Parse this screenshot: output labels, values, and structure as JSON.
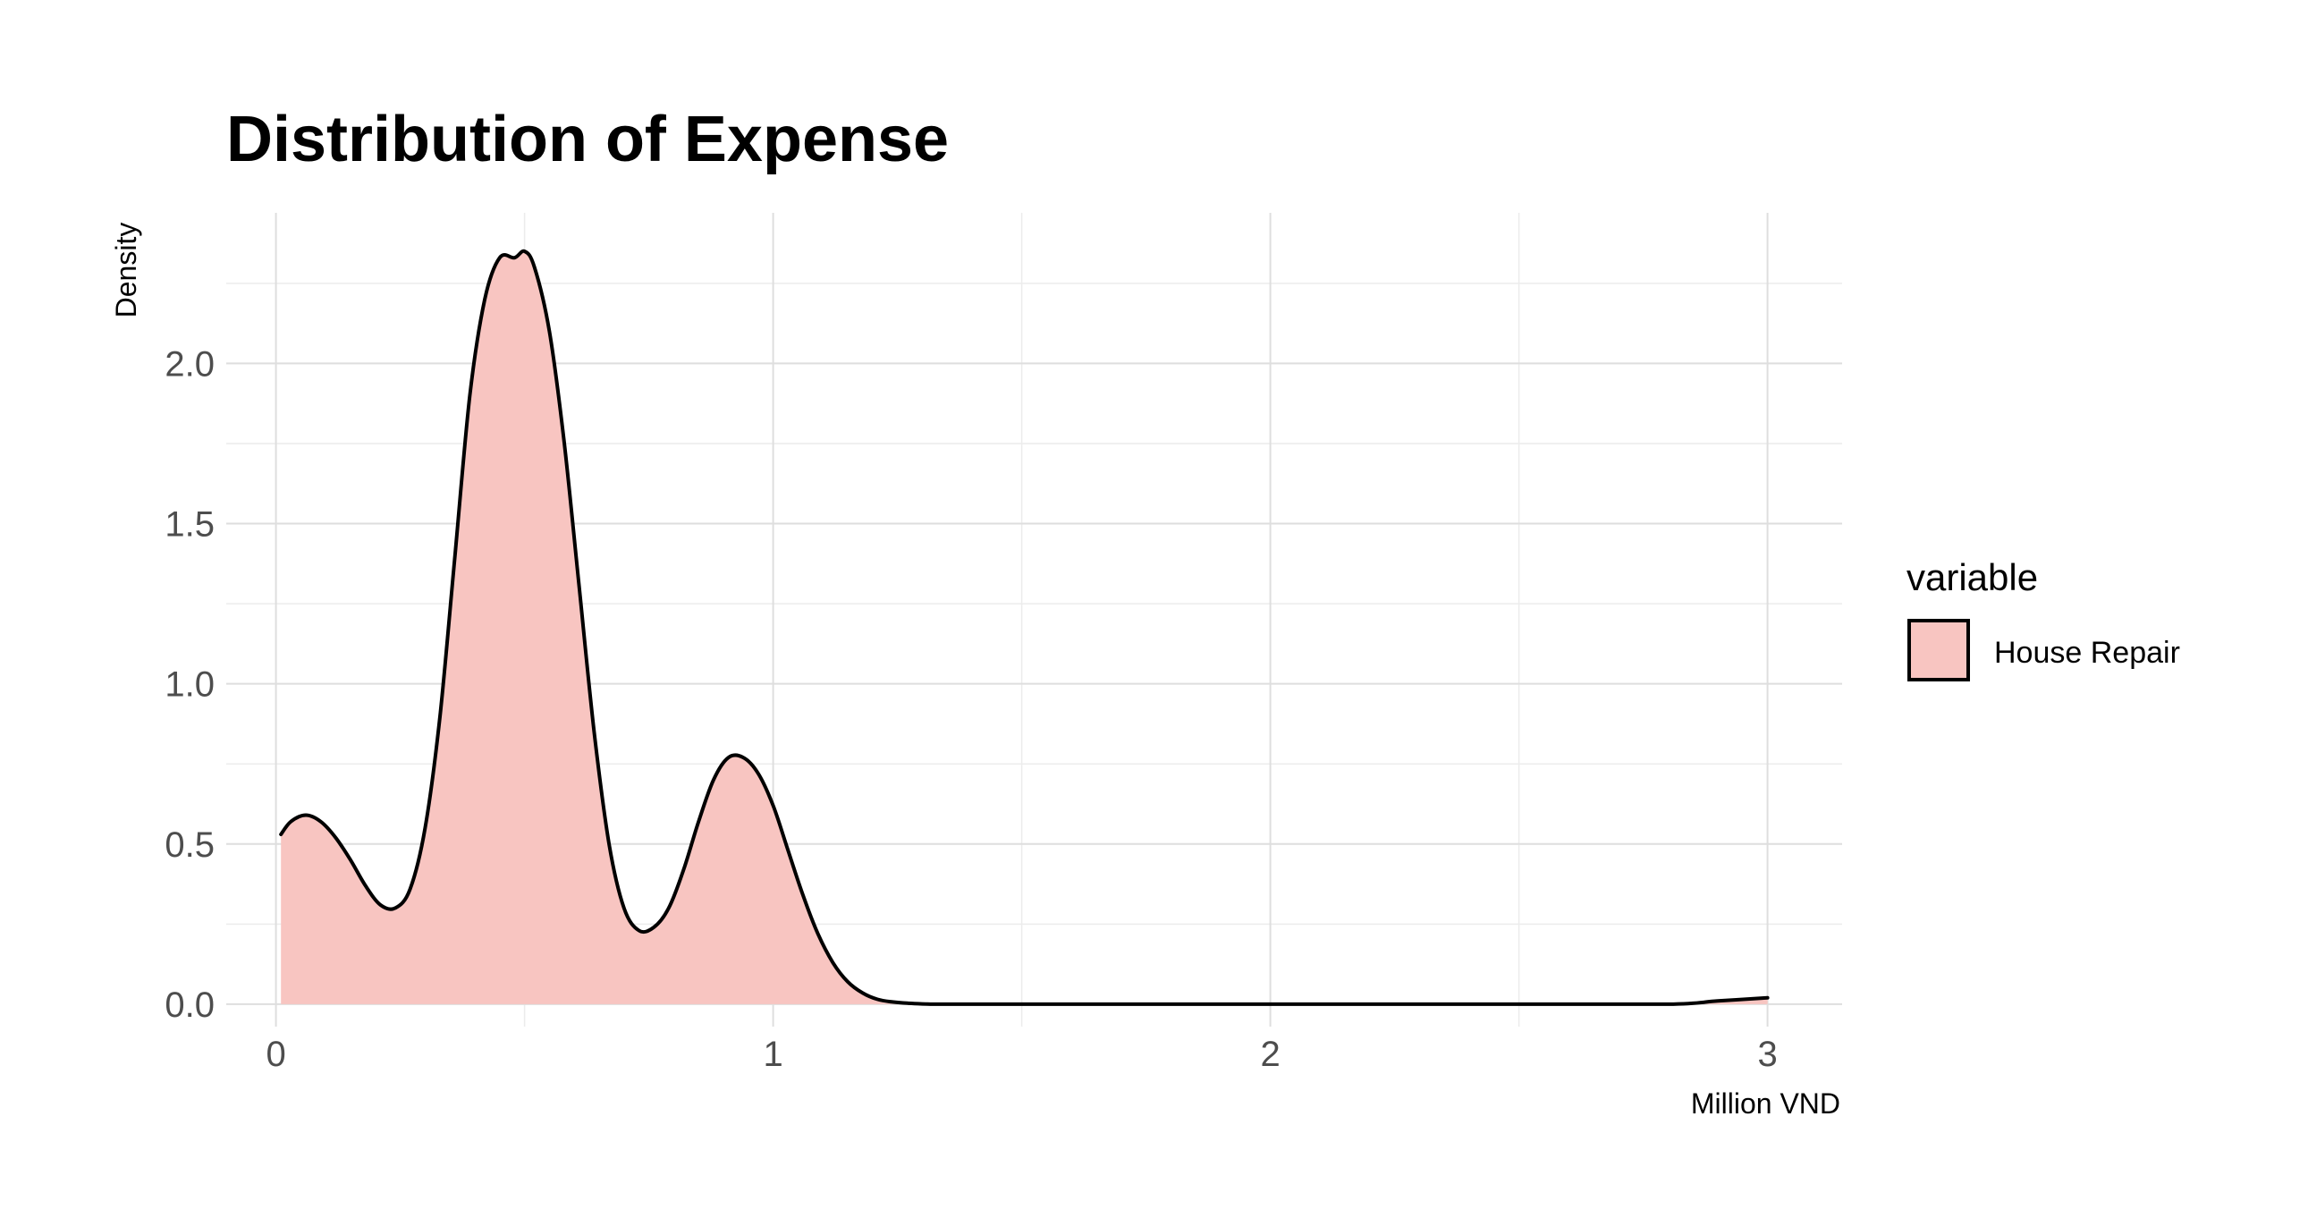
{
  "chart_data": {
    "type": "area",
    "title": "Distribution of Expense",
    "xlabel": "Million VND",
    "ylabel": "Density",
    "xlim": [
      -0.1,
      3.15
    ],
    "ylim": [
      -0.07,
      2.47
    ],
    "x_ticks": [
      0,
      1,
      2,
      3
    ],
    "x_tick_labels": [
      "0",
      "1",
      "2",
      "3"
    ],
    "x_minor_ticks": [
      0.5,
      1.5,
      2.5
    ],
    "y_ticks": [
      0,
      0.5,
      1,
      1.5,
      2
    ],
    "y_tick_labels": [
      "0.0",
      "0.5",
      "1.0",
      "1.5",
      "2.0"
    ],
    "y_minor_ticks": [
      0.25,
      0.75,
      1.25,
      1.75,
      2.25
    ],
    "grid": true,
    "legend": {
      "title": "variable",
      "placement": "right"
    },
    "series": [
      {
        "name": "House Repair",
        "fill_color": "#f8c5c1",
        "line_color": "#000000",
        "x": [
          0.01,
          0.03,
          0.06,
          0.09,
          0.12,
          0.15,
          0.18,
          0.21,
          0.24,
          0.27,
          0.3,
          0.33,
          0.36,
          0.39,
          0.42,
          0.45,
          0.48,
          0.5,
          0.52,
          0.55,
          0.58,
          0.61,
          0.64,
          0.67,
          0.7,
          0.73,
          0.76,
          0.79,
          0.82,
          0.85,
          0.88,
          0.91,
          0.94,
          0.97,
          1.0,
          1.03,
          1.06,
          1.09,
          1.12,
          1.15,
          1.18,
          1.21,
          1.24,
          1.27,
          1.3,
          1.33,
          1.36,
          1.5,
          2.0,
          2.5,
          2.8,
          2.9,
          3.0
        ],
        "values": [
          0.53,
          0.57,
          0.59,
          0.57,
          0.52,
          0.45,
          0.37,
          0.31,
          0.3,
          0.36,
          0.55,
          0.9,
          1.4,
          1.9,
          2.2,
          2.33,
          2.33,
          2.35,
          2.3,
          2.1,
          1.75,
          1.3,
          0.85,
          0.5,
          0.3,
          0.23,
          0.24,
          0.3,
          0.42,
          0.57,
          0.7,
          0.77,
          0.77,
          0.72,
          0.62,
          0.48,
          0.34,
          0.22,
          0.13,
          0.07,
          0.035,
          0.015,
          0.007,
          0.003,
          0.001,
          0.0,
          0.0,
          0.0,
          0.0,
          0.0,
          0.0,
          0.01,
          0.02
        ]
      }
    ]
  }
}
